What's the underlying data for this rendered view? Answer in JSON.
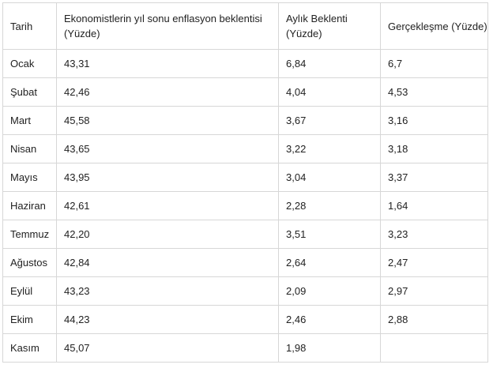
{
  "table": {
    "headers": [
      "Tarih",
      "Ekonomistlerin yıl sonu enflasyon beklentisi (Yüzde)",
      "Aylık Beklenti (Yüzde)",
      "Gerçekleşme (Yüzde)"
    ],
    "rows": [
      [
        "Ocak",
        "43,31",
        "6,84",
        "6,7"
      ],
      [
        "Şubat",
        "42,46",
        "4,04",
        "4,53"
      ],
      [
        "Mart",
        "45,58",
        "3,67",
        "3,16"
      ],
      [
        "Nisan",
        "43,65",
        "3,22",
        "3,18"
      ],
      [
        "Mayıs",
        "43,95",
        "3,04",
        "3,37"
      ],
      [
        "Haziran",
        "42,61",
        "2,28",
        "1,64"
      ],
      [
        "Temmuz",
        "42,20",
        "3,51",
        "3,23"
      ],
      [
        "Ağustos",
        "42,84",
        "2,64",
        "2,47"
      ],
      [
        "Eylül",
        "43,23",
        "2,09",
        "2,97"
      ],
      [
        "Ekim",
        "44,23",
        "2,46",
        "2,88"
      ],
      [
        "Kasım",
        "45,07",
        "1,98",
        ""
      ]
    ]
  }
}
